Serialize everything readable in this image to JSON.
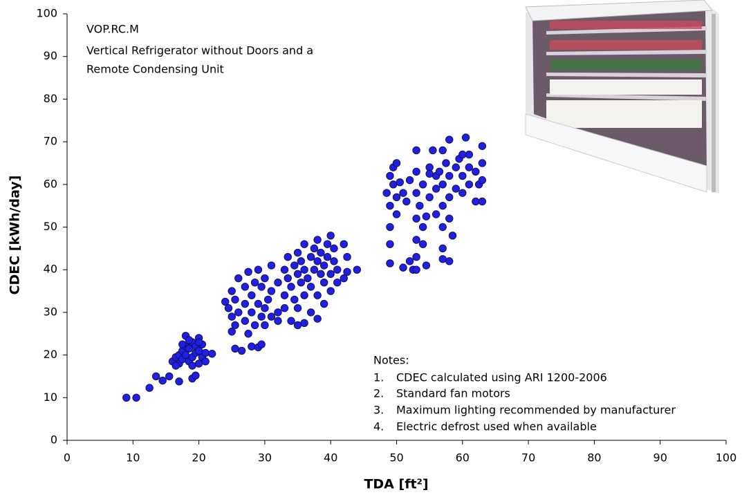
{
  "chart_data": {
    "type": "scatter",
    "annotation": [
      "VOP.RC.M",
      "Vertical Refrigerator without Doors and a",
      "Remote Condensing Unit"
    ],
    "notes": {
      "title": "Notes:",
      "items": [
        {
          "n": "1.",
          "text": "CDEC calculated using ARI 1200-2006"
        },
        {
          "n": "2.",
          "text": "Standard fan motors"
        },
        {
          "n": "3.",
          "text": "Maximum lighting recommended by manufacturer"
        },
        {
          "n": "4.",
          "text": "Electric defrost used when available"
        }
      ]
    },
    "xlabel": "TDA [ft²]",
    "ylabel": "CDEC [kWh/day]",
    "color": "#1f1fe8",
    "xlim": [
      0,
      100
    ],
    "xticks": [
      0,
      10,
      20,
      30,
      40,
      50,
      60,
      70,
      80,
      90,
      100
    ],
    "ylim": [
      0,
      100
    ],
    "yticks": [
      0,
      10,
      20,
      30,
      40,
      50,
      60,
      70,
      80,
      90,
      100
    ],
    "x": [
      9,
      10.5,
      12.5,
      13.5,
      14.5,
      15.5,
      17,
      19,
      19.5,
      16,
      16.5,
      17,
      17,
      17.5,
      17.5,
      18,
      18,
      18,
      18.5,
      18.5,
      19,
      19,
      19,
      19.5,
      19.5,
      20,
      20,
      20,
      20.5,
      20.5,
      21,
      21,
      22,
      16.5,
      18.5,
      17.5,
      20,
      24,
      24.5,
      25,
      25,
      25.5,
      25.5,
      25,
      25.5,
      26.5,
      26,
      26,
      27,
      27,
      27,
      27.5,
      27.5,
      28,
      28,
      28,
      28.5,
      28.5,
      29,
      29,
      29,
      29.5,
      29.5,
      29.5,
      30,
      30,
      30,
      30.5,
      31,
      31,
      31,
      32,
      32,
      32,
      33,
      33,
      33,
      33.5,
      33.5,
      34,
      34,
      34.5,
      34.5,
      35,
      35,
      35,
      35,
      35.5,
      35.5,
      36,
      36,
      36,
      36,
      36.5,
      37,
      37,
      37,
      37.5,
      37.5,
      38,
      38,
      38,
      38,
      38.5,
      38.5,
      39,
      39,
      39,
      39.5,
      39.5,
      40,
      40,
      40,
      40.5,
      40.5,
      41,
      41,
      42,
      42,
      42.5,
      42.5,
      44,
      48.5,
      49,
      49,
      49,
      49,
      49,
      49.5,
      49.5,
      50,
      50,
      50,
      50.5,
      51,
      51,
      52,
      52.5,
      53,
      53,
      53,
      53,
      53,
      53,
      53,
      53.5,
      54,
      54,
      54,
      54.5,
      55,
      55,
      55.5,
      56,
      56,
      56,
      56.5,
      57,
      57,
      57,
      57,
      57,
      57,
      57.5,
      58,
      58,
      58,
      58,
      58,
      58.5,
      59,
      59,
      59.5,
      60,
      60,
      60.5,
      61,
      61,
      62,
      62,
      62.5,
      63,
      63,
      63,
      63,
      52,
      51.5,
      55,
      54.5,
      60,
      61
    ],
    "values": [
      10,
      10,
      12.3,
      15,
      14,
      15,
      13.8,
      14.5,
      15.2,
      18.5,
      19.5,
      18,
      20,
      21,
      19,
      22,
      24.5,
      20,
      18.5,
      21.5,
      19.5,
      23,
      17.5,
      22,
      20.5,
      18,
      24,
      21,
      19.5,
      22.5,
      20.5,
      18.5,
      20.3,
      17.5,
      23.5,
      22.5,
      23,
      32.5,
      31,
      35,
      29,
      27,
      33,
      25.5,
      21.5,
      21,
      38,
      30,
      32,
      36,
      28,
      39.5,
      25,
      34,
      30,
      22,
      37,
      27,
      40,
      32,
      21.8,
      22.5,
      29,
      36,
      38,
      31,
      27,
      33,
      41,
      35,
      29,
      37,
      30,
      28,
      40,
      34,
      31,
      43,
      38,
      36,
      28,
      41,
      33,
      44,
      39,
      31,
      27,
      37,
      42,
      46,
      40,
      34,
      27.5,
      38,
      43,
      36,
      30,
      45,
      40,
      47,
      42,
      34,
      28.5,
      39,
      44,
      37,
      41,
      32,
      46,
      43,
      48,
      39,
      35,
      42,
      45,
      40,
      37,
      46,
      38,
      43,
      39.5,
      40,
      58,
      62,
      55,
      50,
      46,
      41.5,
      64,
      60,
      65,
      57,
      53,
      60.5,
      40.5,
      58,
      42,
      40,
      68,
      63,
      58,
      52,
      47,
      43,
      40,
      55,
      60,
      50,
      46,
      41,
      64,
      57,
      68,
      62,
      53,
      59,
      63,
      68,
      60,
      55,
      50,
      45,
      42.5,
      65,
      70.5,
      62,
      57,
      52,
      42,
      48,
      64,
      59,
      66,
      62,
      58,
      71,
      60,
      67,
      63,
      56,
      60,
      69,
      65,
      61,
      56,
      61,
      56,
      62.5,
      52.5,
      67,
      64
    ]
  }
}
